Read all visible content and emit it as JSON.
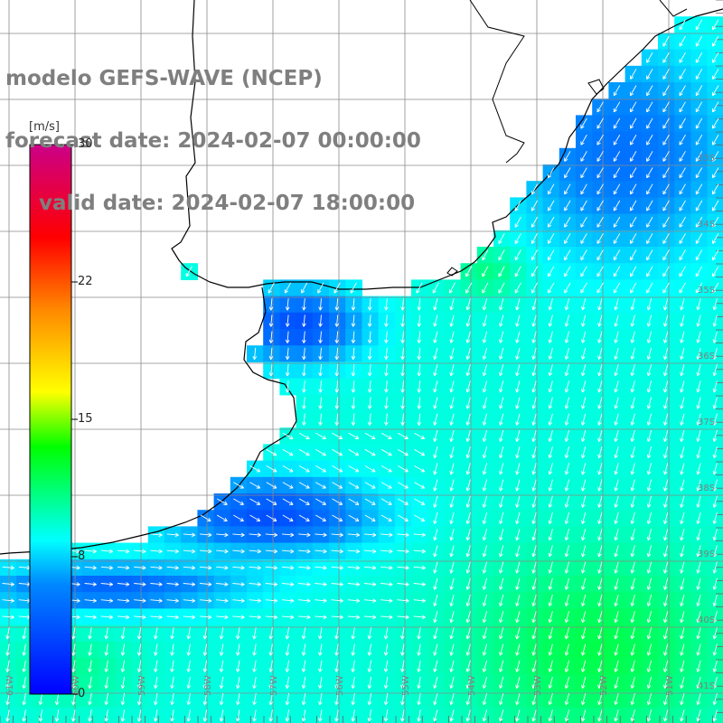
{
  "header": {
    "line1": "modelo GEFS-WAVE (NCEP)",
    "line2": "forecast date: 2024-02-07 00:00:00",
    "line3": "valid date: 2024-02-07 18:00:00"
  },
  "colorbar": {
    "unit": "[m/s]",
    "ticks": [
      {
        "label": "30",
        "value": 30
      },
      {
        "label": "22",
        "value": 22
      },
      {
        "label": "15",
        "value": 15
      },
      {
        "label": "8",
        "value": 8
      },
      {
        "label": "0",
        "value": 0
      }
    ],
    "colors": [
      "#0000ff",
      "#0088ff",
      "#00ffff",
      "#00ff00",
      "#ffff00",
      "#ff8800",
      "#ff0000",
      "#cc0088"
    ]
  },
  "grid": {
    "lat_labels": [
      "33S",
      "34S",
      "35S",
      "36S",
      "37S",
      "38S",
      "39S",
      "40S",
      "41S"
    ],
    "lon_labels": [
      "61W",
      "60W",
      "59W",
      "58W",
      "57W",
      "56W",
      "55W",
      "54W",
      "53W",
      "52W",
      "51W"
    ]
  },
  "colors": {
    "land": "#ffffff",
    "coast": "#000000",
    "grid": "#888888",
    "arrow": "#ffffff",
    "label": "#7f7f7f"
  }
}
